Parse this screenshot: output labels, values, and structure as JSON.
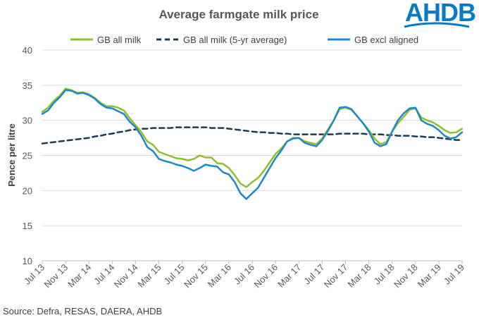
{
  "colors": {
    "series1": "#8dbf2e",
    "series2": "#1f3b52",
    "series3": "#1a8ac9",
    "grid": "#d9d9d9",
    "logo": "#0a7bc2"
  },
  "logo": {
    "text": "AHDB"
  },
  "source": "Source: Defra, RESAS, DAERA, AHDB",
  "chart_data": {
    "type": "line",
    "title": "Average farmgate milk price",
    "ylabel": "Pence per litre",
    "xlabel": "",
    "ylim": [
      10,
      40
    ],
    "yticks": [
      10,
      15,
      20,
      25,
      30,
      35,
      40
    ],
    "grid": true,
    "legend": "top",
    "x_tick_labels": [
      "Jul 13",
      "Nov 13",
      "Mar 14",
      "Jul 14",
      "Nov 14",
      "Mar 15",
      "Jul 15",
      "Nov 15",
      "Mar 16",
      "Jul 16",
      "Nov 16",
      "Mar 17",
      "Jul 17",
      "Nov 17",
      "Mar 18",
      "Jul 18",
      "Nov 18",
      "Mar 19",
      "Jul 19"
    ],
    "series": [
      {
        "name": "GB all milk",
        "style": "solid",
        "values": [
          31.2,
          31.8,
          32.8,
          33.5,
          34.5,
          34.3,
          33.9,
          34.0,
          33.7,
          33.2,
          32.5,
          32.0,
          32.0,
          31.8,
          31.4,
          30.3,
          29.3,
          28.3,
          27.0,
          26.5,
          25.5,
          25.2,
          24.9,
          24.6,
          24.5,
          24.3,
          24.5,
          25.0,
          24.7,
          24.7,
          23.9,
          23.8,
          23.2,
          22.2,
          21.0,
          20.5,
          21.2,
          21.8,
          22.8,
          24.0,
          25.2,
          26.0,
          27.0,
          27.5,
          27.5,
          27.0,
          26.8,
          26.6,
          27.4,
          28.7,
          30.0,
          31.6,
          31.8,
          31.5,
          30.6,
          29.6,
          28.6,
          27.4,
          26.6,
          26.9,
          28.4,
          29.6,
          30.5,
          31.5,
          31.7,
          30.4,
          30.0,
          29.7,
          29.2,
          28.6,
          28.2,
          28.3,
          28.8
        ]
      },
      {
        "name": "GB all milk (5-yr average)",
        "style": "dashed",
        "values": [
          26.7,
          26.8,
          26.9,
          27.0,
          27.1,
          27.2,
          27.3,
          27.4,
          27.5,
          27.7,
          27.8,
          28.0,
          28.1,
          28.3,
          28.4,
          28.6,
          28.7,
          28.8,
          28.8,
          28.9,
          28.9,
          28.9,
          28.9,
          29.0,
          29.0,
          29.0,
          29.0,
          29.0,
          29.0,
          28.9,
          28.9,
          28.9,
          28.8,
          28.7,
          28.6,
          28.5,
          28.4,
          28.3,
          28.3,
          28.2,
          28.2,
          28.1,
          28.1,
          28.0,
          28.0,
          28.0,
          28.0,
          28.0,
          28.0,
          28.0,
          28.0,
          28.1,
          28.1,
          28.1,
          28.1,
          28.1,
          28.0,
          28.0,
          28.0,
          27.9,
          27.9,
          27.8,
          27.8,
          27.8,
          27.7,
          27.7,
          27.6,
          27.6,
          27.5,
          27.4,
          27.3,
          27.2,
          27.2
        ]
      },
      {
        "name": "GB excl aligned",
        "style": "solid",
        "values": [
          30.9,
          31.4,
          32.5,
          33.3,
          34.3,
          34.2,
          33.8,
          33.9,
          33.6,
          33.1,
          32.3,
          31.8,
          31.7,
          31.3,
          30.9,
          29.8,
          29.0,
          27.8,
          26.2,
          25.6,
          24.5,
          24.2,
          24.0,
          23.7,
          23.5,
          23.2,
          22.8,
          23.2,
          23.7,
          23.5,
          23.4,
          22.6,
          22.3,
          21.2,
          19.6,
          18.8,
          19.6,
          20.4,
          21.8,
          23.2,
          24.6,
          25.7,
          27.0,
          27.4,
          27.5,
          26.8,
          26.5,
          26.3,
          27.2,
          28.5,
          30.0,
          31.8,
          31.9,
          31.6,
          30.6,
          29.6,
          28.4,
          26.8,
          26.3,
          26.6,
          28.4,
          30.0,
          31.0,
          31.7,
          31.8,
          30.0,
          29.5,
          29.2,
          28.6,
          27.8,
          27.4,
          27.6,
          28.3
        ]
      }
    ]
  }
}
